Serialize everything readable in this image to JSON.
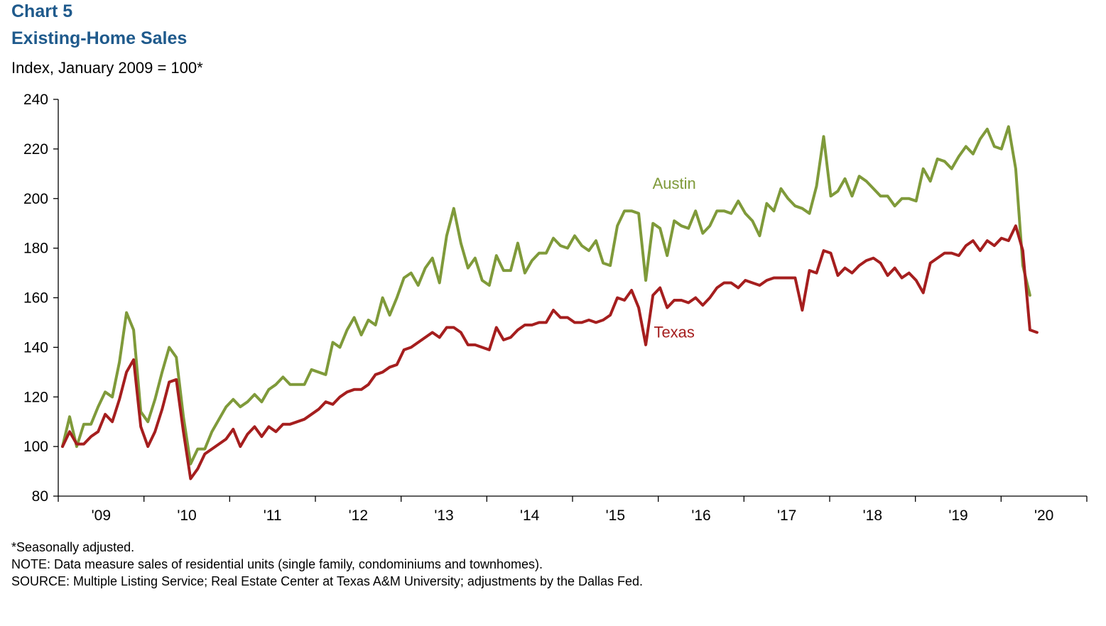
{
  "header": {
    "chart_number": "Chart 5",
    "title": "Existing-Home Sales",
    "subtitle": "Index, January 2009 = 100*"
  },
  "footnotes": {
    "asterisk": "*Seasonally adjusted.",
    "note": "NOTE: Data measure sales of residential units (single family, condominiums and townhomes).",
    "source": "SOURCE: Multiple Listing Service; Real Estate Center at Texas A&M University; adjustments by the Dallas Fed."
  },
  "chart_data": {
    "type": "line",
    "title": "Existing-Home Sales",
    "ylabel": "Index, January 2009 = 100*",
    "xlabel": "",
    "ylim": [
      80,
      240
    ],
    "yticks": [
      80,
      100,
      120,
      140,
      160,
      180,
      200,
      220,
      240
    ],
    "x_tick_labels": [
      "'09",
      "'10",
      "'11",
      "'12",
      "'13",
      "'14",
      "'15",
      "'16",
      "'17",
      "'18",
      "'19",
      "'20"
    ],
    "x_start": "2009-01",
    "x_end": "2020-12",
    "grid": false,
    "legend": "inline labels",
    "colors": {
      "Austin": "#7f9a3a",
      "Texas": "#a51e1e",
      "title": "#1f5a8c"
    },
    "series": [
      {
        "name": "Austin",
        "label_x": "2016-03",
        "label_y": 204,
        "values": [
          100,
          112,
          100,
          109,
          109,
          116,
          122,
          120,
          134,
          154,
          147,
          114,
          110,
          119,
          130,
          140,
          136,
          112,
          93,
          99,
          99,
          106,
          111,
          116,
          119,
          116,
          118,
          121,
          118,
          123,
          125,
          128,
          125,
          125,
          125,
          131,
          130,
          129,
          142,
          140,
          147,
          152,
          145,
          151,
          149,
          160,
          153,
          160,
          168,
          170,
          165,
          172,
          176,
          166,
          185,
          196,
          182,
          172,
          176,
          167,
          165,
          177,
          171,
          171,
          182,
          170,
          175,
          178,
          178,
          184,
          181,
          180,
          185,
          181,
          179,
          183,
          174,
          173,
          189,
          195,
          195,
          194,
          167,
          190,
          188,
          177,
          191,
          189,
          188,
          195,
          186,
          189,
          195,
          195,
          194,
          199,
          194,
          191,
          185,
          198,
          195,
          204,
          200,
          197,
          196,
          194,
          205,
          225,
          201,
          203,
          208,
          201,
          209,
          207,
          204,
          201,
          201,
          197,
          200,
          200,
          199,
          212,
          207,
          216,
          215,
          212,
          217,
          221,
          218,
          224,
          228,
          221,
          220,
          229,
          212,
          173,
          161
        ]
      },
      {
        "name": "Texas",
        "label_x": "2016-03",
        "label_y": 144,
        "values": [
          100,
          106,
          101,
          101,
          104,
          106,
          113,
          110,
          119,
          130,
          135,
          108,
          100,
          106,
          115,
          126,
          127,
          106,
          87,
          91,
          97,
          99,
          101,
          103,
          107,
          100,
          105,
          108,
          104,
          108,
          106,
          109,
          109,
          110,
          111,
          113,
          115,
          118,
          117,
          120,
          122,
          123,
          123,
          125,
          129,
          130,
          132,
          133,
          139,
          140,
          142,
          144,
          146,
          144,
          148,
          148,
          146,
          141,
          141,
          140,
          139,
          148,
          143,
          144,
          147,
          149,
          149,
          150,
          150,
          155,
          152,
          152,
          150,
          150,
          151,
          150,
          151,
          153,
          160,
          159,
          163,
          156,
          141,
          161,
          164,
          156,
          159,
          159,
          158,
          160,
          157,
          160,
          164,
          166,
          166,
          164,
          167,
          166,
          165,
          167,
          168,
          168,
          168,
          168,
          155,
          171,
          170,
          179,
          178,
          169,
          172,
          170,
          173,
          175,
          176,
          174,
          169,
          172,
          168,
          170,
          167,
          162,
          174,
          176,
          178,
          178,
          177,
          181,
          183,
          179,
          183,
          181,
          184,
          183,
          189,
          179,
          147,
          146
        ]
      }
    ]
  }
}
